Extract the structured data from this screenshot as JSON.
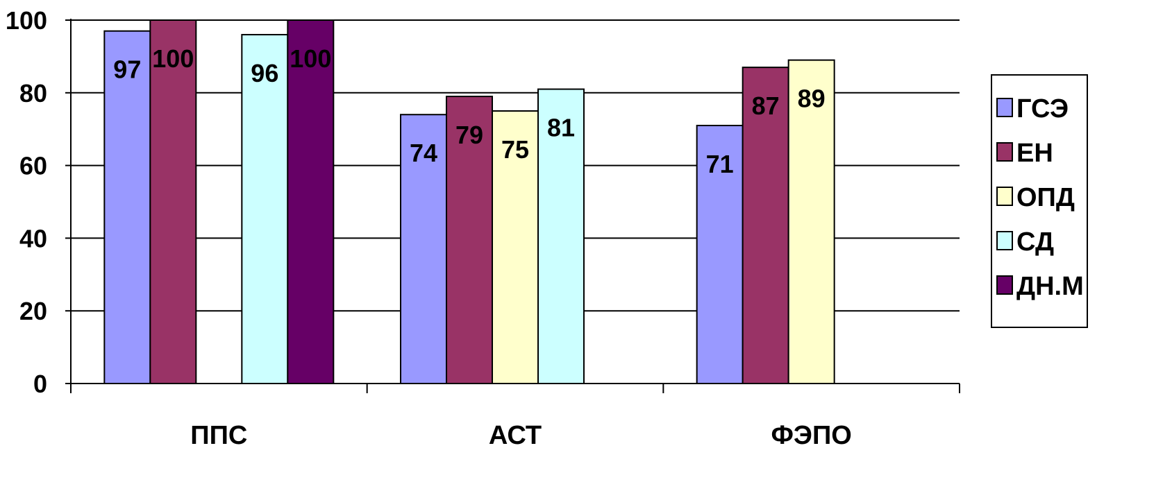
{
  "chart_data": {
    "type": "bar",
    "title": "",
    "xlabel": "",
    "ylabel": "",
    "categories": [
      "ППС",
      "АСТ",
      "ФЭПО"
    ],
    "ylim": [
      0,
      100
    ],
    "yticks": [
      0,
      20,
      40,
      60,
      80,
      100
    ],
    "grid": true,
    "legend_position": "right",
    "series": [
      {
        "name": "ГСЭ",
        "color": "#9999ff",
        "values": [
          97,
          74,
          71
        ]
      },
      {
        "name": "ЕН",
        "color": "#993366",
        "values": [
          100,
          79,
          87
        ]
      },
      {
        "name": "ОПД",
        "color": "#ffffcc",
        "values": [
          null,
          75,
          89
        ]
      },
      {
        "name": "СД",
        "color": "#ccffff",
        "values": [
          96,
          81,
          null
        ]
      },
      {
        "name": "ДН.М",
        "color": "#660066",
        "values": [
          100,
          null,
          null
        ]
      }
    ]
  }
}
